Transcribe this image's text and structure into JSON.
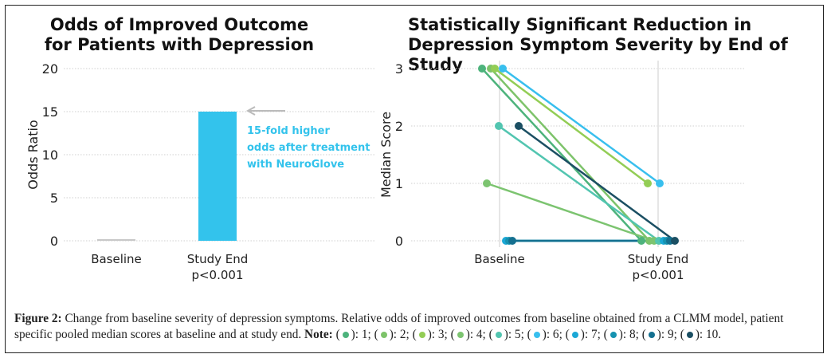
{
  "chart_data": [
    {
      "type": "bar",
      "title": "Odds of Improved Outcome\nfor Patients with Depression",
      "xlabel": "",
      "ylabel": "Odds Ratio",
      "ylim": [
        0,
        20
      ],
      "yticks": [
        0,
        5,
        10,
        15,
        20
      ],
      "grid": true,
      "categories": [
        "Baseline",
        "Study End"
      ],
      "category_sublabels": [
        "",
        "p<0.001"
      ],
      "values": [
        0,
        15
      ],
      "colors": [
        "#c8c8c8",
        "#33c3ec"
      ],
      "annotation": {
        "text": [
          "15-fold higher",
          "odds after treatment",
          "with NeuroGlove"
        ],
        "color": "#33c3ec",
        "arrow_points_to_value": 15
      }
    },
    {
      "type": "line",
      "title": "Statistically Significant Reduction in\nDepression Symptom Severity by End of Study",
      "xlabel": "",
      "ylabel": "Median Score",
      "ylim": [
        0,
        3
      ],
      "yticks": [
        0,
        1,
        2,
        3
      ],
      "grid": true,
      "categories": [
        "Baseline",
        "Study End"
      ],
      "category_sublabels": [
        "",
        "p<0.001"
      ],
      "series": [
        {
          "name": "1",
          "color": "#4db37c",
          "values": [
            3,
            0
          ]
        },
        {
          "name": "2",
          "color": "#7dc36a",
          "values": [
            3,
            0
          ]
        },
        {
          "name": "3",
          "color": "#93cd55",
          "values": [
            3,
            1
          ]
        },
        {
          "name": "4",
          "color": "#7cc470",
          "values": [
            1,
            0
          ]
        },
        {
          "name": "5",
          "color": "#52c5b0",
          "values": [
            2,
            0
          ]
        },
        {
          "name": "6",
          "color": "#38bfee",
          "values": [
            3,
            1
          ]
        },
        {
          "name": "7",
          "color": "#1ba8d6",
          "values": [
            0,
            0
          ]
        },
        {
          "name": "8",
          "color": "#1592b0",
          "values": [
            0,
            0
          ]
        },
        {
          "name": "9",
          "color": "#147090",
          "values": [
            0,
            0
          ]
        },
        {
          "name": "10",
          "color": "#1b4f63",
          "values": [
            2,
            0
          ]
        }
      ]
    }
  ],
  "caption": {
    "label": "Figure 2:",
    "text": " Change from baseline severity of depression symptoms. Relative odds of improved outcomes from baseline obtained from a CLMM model, patient specific pooled median scores at baseline and at study end. ",
    "note_label": "Note:",
    "legend": [
      {
        "label": "1",
        "color": "#4db37c"
      },
      {
        "label": "2",
        "color": "#7dc36a"
      },
      {
        "label": "3",
        "color": "#93cd55"
      },
      {
        "label": "4",
        "color": "#7cc470"
      },
      {
        "label": "5",
        "color": "#52c5b0"
      },
      {
        "label": "6",
        "color": "#38bfee"
      },
      {
        "label": "7",
        "color": "#1ba8d6"
      },
      {
        "label": "8",
        "color": "#1592b0"
      },
      {
        "label": "9",
        "color": "#147090"
      },
      {
        "label": "10",
        "color": "#1b4f63"
      }
    ]
  }
}
